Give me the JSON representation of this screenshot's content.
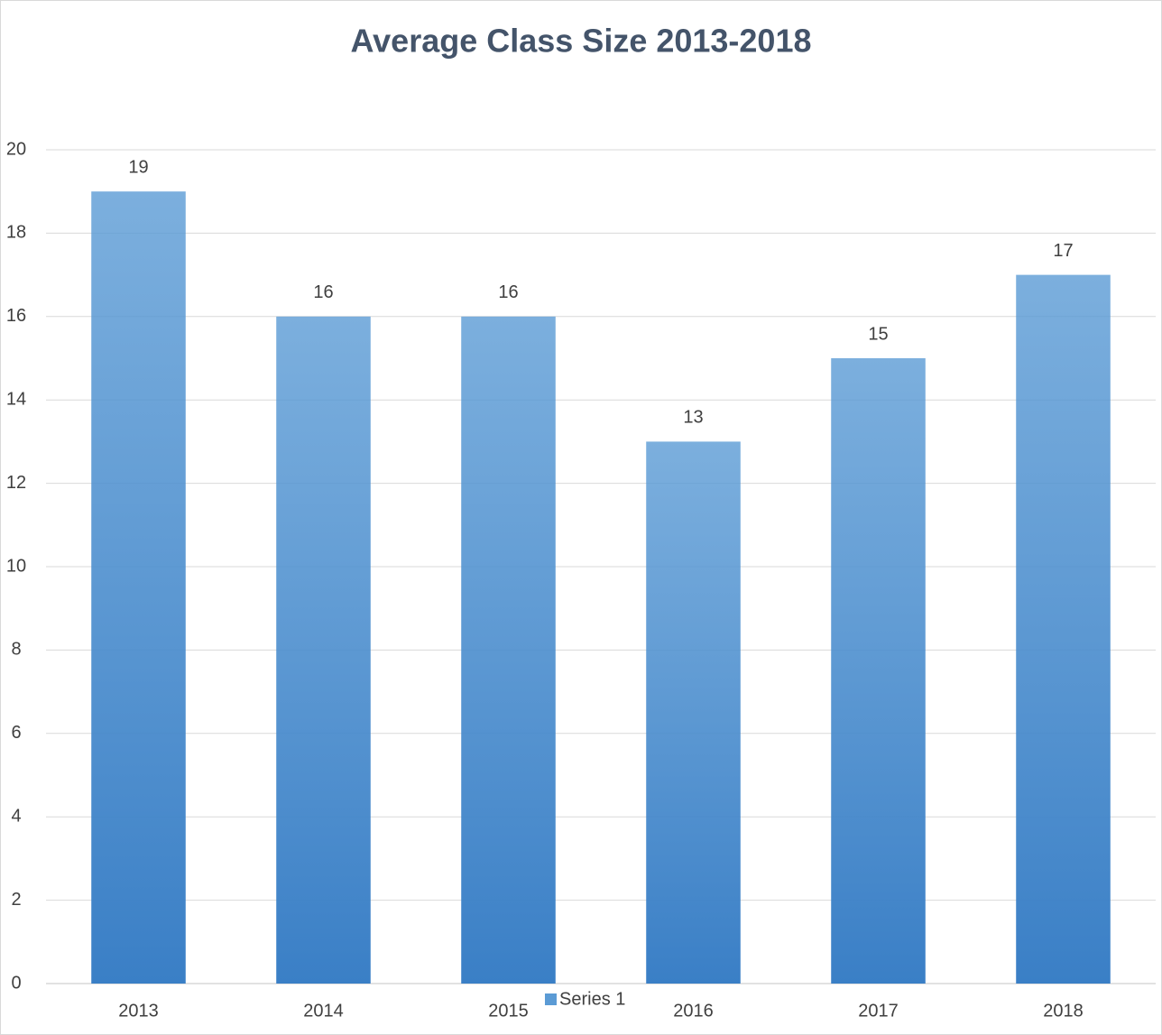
{
  "chart_data": {
    "type": "bar",
    "title": "Average Class Size 2013-2018",
    "categories": [
      "2013",
      "2014",
      "2015",
      "2016",
      "2017",
      "2018"
    ],
    "series": [
      {
        "name": "Series 1",
        "color": "#5b9bd5",
        "values": [
          19,
          16,
          16,
          13,
          15,
          17
        ]
      }
    ],
    "ylim": [
      0,
      20
    ],
    "yticks": [
      0,
      2,
      4,
      6,
      8,
      10,
      12,
      14,
      16,
      18,
      20
    ],
    "grid": true,
    "legend": "bottom"
  }
}
